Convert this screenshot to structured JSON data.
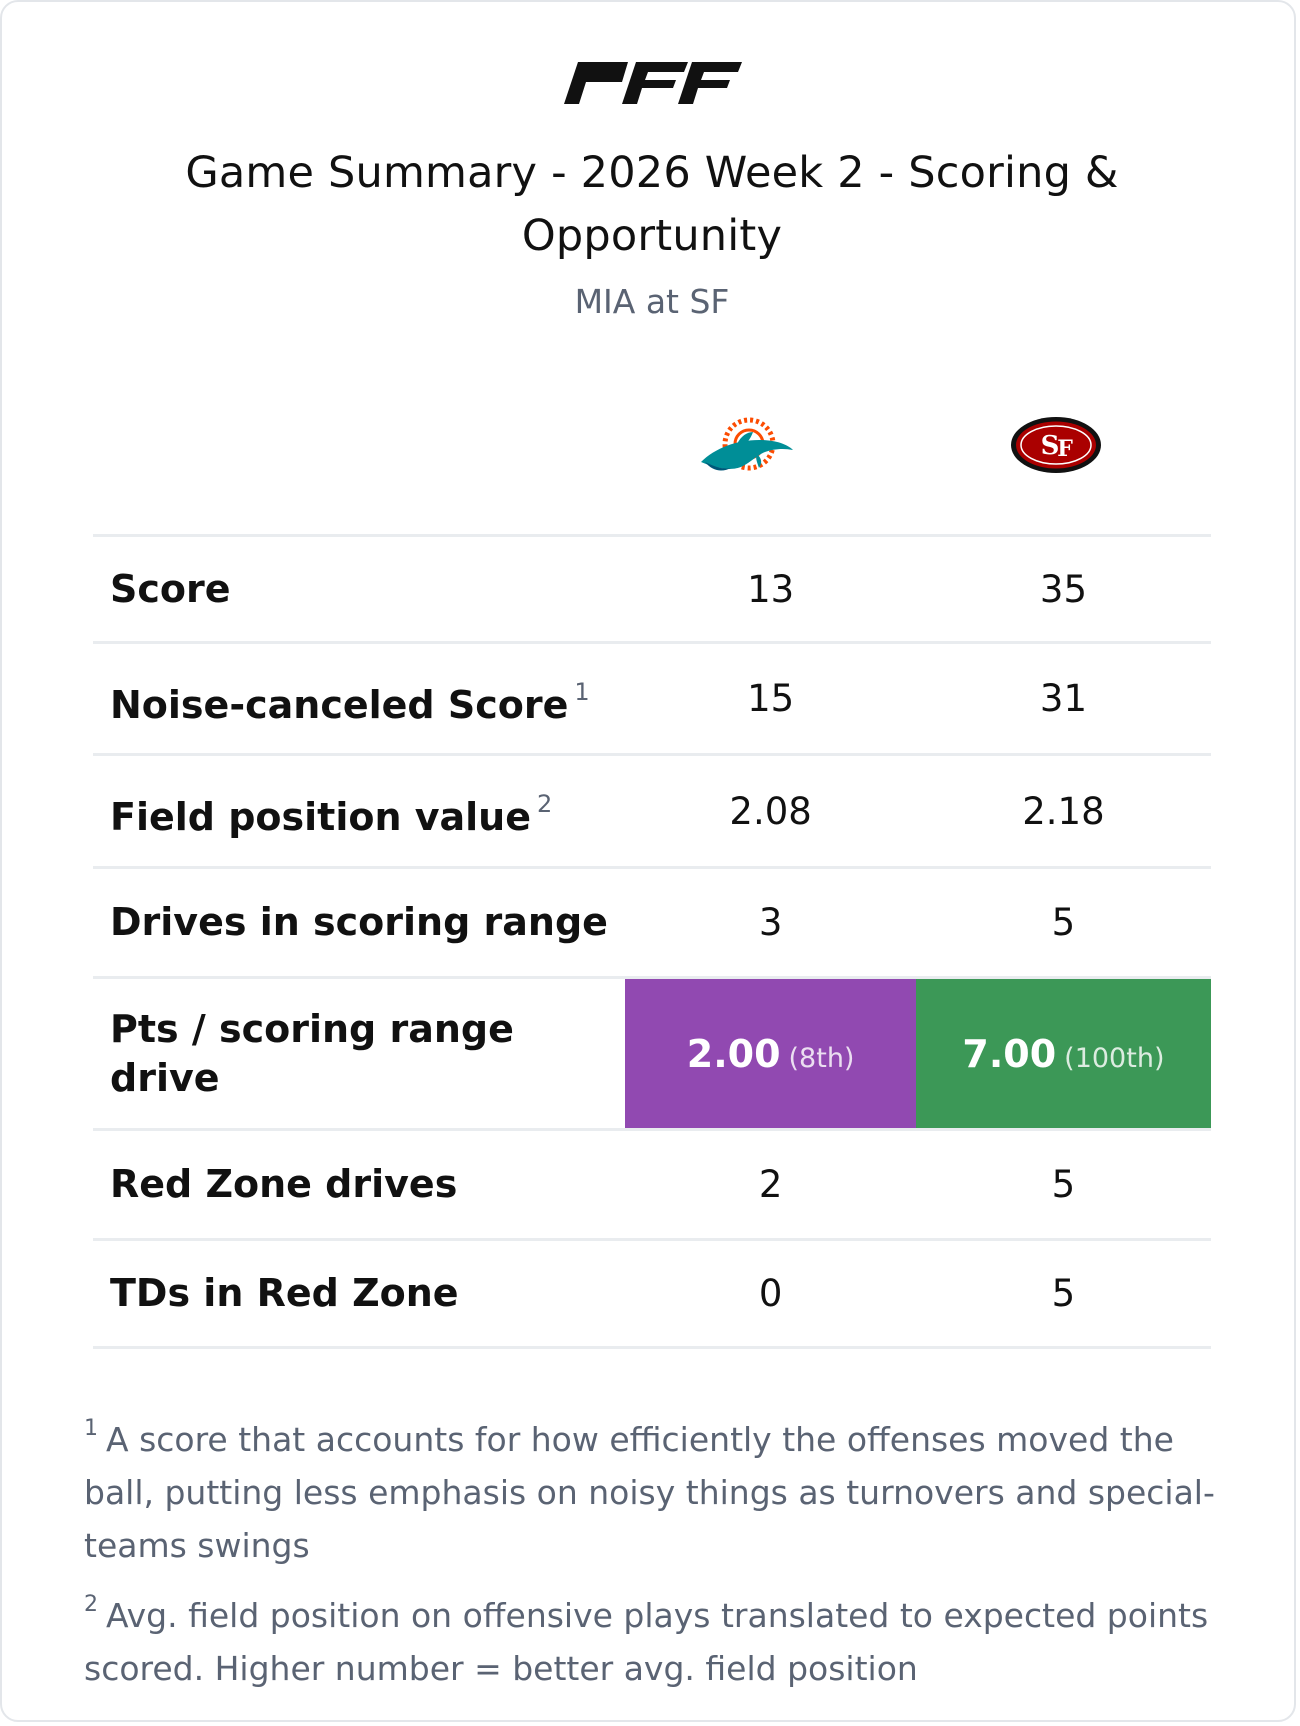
{
  "brand": {
    "logo_text": "PFF"
  },
  "header": {
    "title": "Game Summary - 2026 Week 2 - Scoring & Opportunity",
    "subtitle": "MIA at SF"
  },
  "teams": [
    {
      "abbr": "MIA",
      "logo": "dolphins-logo-icon",
      "colors": {
        "primary": "#008e97",
        "accent": "#fc4c02"
      }
    },
    {
      "abbr": "SF",
      "logo": "49ers-logo-icon",
      "colors": {
        "primary": "#aa0000",
        "accent": "#b3995d"
      }
    }
  ],
  "rows": [
    {
      "label": "Score",
      "footnote": "",
      "away": "13",
      "home": "35"
    },
    {
      "label": "Noise-canceled Score",
      "footnote": "1",
      "away": "15",
      "home": "31"
    },
    {
      "label": "Field position value",
      "footnote": "2",
      "away": "2.08",
      "home": "2.18"
    },
    {
      "label": "Drives in scoring range",
      "footnote": "",
      "away": "3",
      "home": "5"
    },
    {
      "label": "Pts / scoring range drive",
      "footnote": "",
      "away": "2.00",
      "away_rank": "(8th)",
      "away_color": "#9149b1",
      "home": "7.00",
      "home_rank": "(100th)",
      "home_color": "#3c9857"
    },
    {
      "label": "Red Zone drives",
      "footnote": "",
      "away": "2",
      "home": "5"
    },
    {
      "label": "TDs in Red Zone",
      "footnote": "",
      "away": "0",
      "home": "5"
    }
  ],
  "footnotes": [
    {
      "mark": "1",
      "text": "A score that accounts for how efficiently the offenses moved the ball, putting less emphasis on noisy things as turnovers and special-teams swings"
    },
    {
      "mark": "2",
      "text": "Avg. field position on offensive plays translated to expected points scored. Higher number = better avg. field position"
    }
  ]
}
